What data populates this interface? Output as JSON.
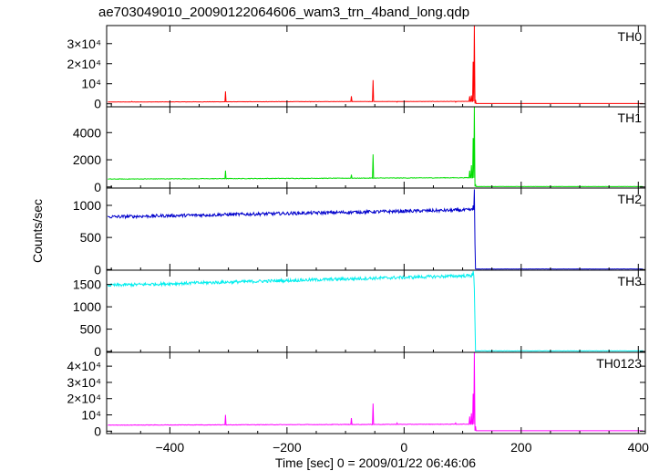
{
  "chart_data": {
    "type": "line",
    "title": "ae703049010_20090122064606_wam3_trn_4band_long.qdp",
    "xlabel": "Time [sec] 0 = 2009/01/22 06:46:06",
    "ylabel": "Counts/sec",
    "xlim": [
      -508,
      412
    ],
    "x_ticks": [
      -400,
      -200,
      0,
      200,
      400
    ],
    "x_tick_labels": [
      "−400",
      "−200",
      "0",
      "200",
      "400"
    ],
    "trigger_time": 120,
    "panels": [
      {
        "name": "TH0",
        "color": "#ff0000",
        "ylim": [
          -1500,
          39000
        ],
        "yticks": [
          0,
          10000,
          20000,
          30000
        ],
        "ytick_labels": [
          "0",
          "10⁴",
          "2×10⁴",
          "3×10⁴"
        ],
        "baseline_pre": 900,
        "baseline_trend": 300,
        "baseline_post": 150,
        "noise": 60,
        "spikes": [
          [
            -465,
            1200
          ],
          [
            -305,
            6200
          ],
          [
            -160,
            900
          ],
          [
            -90,
            3800
          ],
          [
            -60,
            1000
          ],
          [
            -53,
            11800
          ],
          [
            -12,
            800
          ],
          [
            88,
            800
          ],
          [
            112,
            3800
          ],
          [
            115,
            4200
          ],
          [
            118,
            21000
          ],
          [
            120,
            39000
          ],
          [
            122,
            2000
          ]
        ]
      },
      {
        "name": "TH1",
        "color": "#00dd00",
        "ylim": [
          -80,
          5900
        ],
        "yticks": [
          0,
          2000,
          4000
        ],
        "ytick_labels": [
          "0",
          "2000",
          "4000"
        ],
        "baseline_pre": 580,
        "baseline_trend": 100,
        "baseline_post": 30,
        "noise": 20,
        "spikes": [
          [
            -305,
            1200
          ],
          [
            -90,
            900
          ],
          [
            -53,
            2400
          ],
          [
            112,
            1200
          ],
          [
            115,
            1600
          ],
          [
            118,
            3600
          ],
          [
            120,
            5900
          ],
          [
            122,
            200
          ]
        ]
      },
      {
        "name": "TH2",
        "color": "#0000cc",
        "ylim": [
          -10,
          1270
        ],
        "yticks": [
          0,
          500,
          1000
        ],
        "ytick_labels": [
          "0",
          "500",
          "1000"
        ],
        "baseline_pre": 820,
        "baseline_trend": 110,
        "baseline_post": 8,
        "noise": 25,
        "spikes": [
          [
            118,
            1000
          ],
          [
            120,
            1250
          ],
          [
            121,
            400
          ]
        ]
      },
      {
        "name": "TH3",
        "color": "#00eeee",
        "ylim": [
          -20,
          1820
        ],
        "yticks": [
          0,
          500,
          1000,
          1500
        ],
        "ytick_labels": [
          "0",
          "500",
          "1000",
          "1500"
        ],
        "baseline_pre": 1480,
        "baseline_trend": 220,
        "baseline_post": 12,
        "noise": 35,
        "spikes": [
          [
            116,
            1750
          ],
          [
            118,
            1800
          ],
          [
            120,
            1400
          ],
          [
            121,
            650
          ]
        ]
      },
      {
        "name": "TH0123",
        "color": "#ff00ff",
        "ylim": [
          -1500,
          48500
        ],
        "yticks": [
          0,
          10000,
          20000,
          30000,
          40000
        ],
        "ytick_labels": [
          "0",
          "10⁴",
          "2×10⁴",
          "3×10⁴",
          "4×10⁴"
        ],
        "baseline_pre": 3700,
        "baseline_trend": 600,
        "baseline_post": 250,
        "noise": 150,
        "spikes": [
          [
            -305,
            10000
          ],
          [
            -90,
            8000
          ],
          [
            -53,
            17000
          ],
          [
            -12,
            5000
          ],
          [
            88,
            5000
          ],
          [
            112,
            9000
          ],
          [
            115,
            11000
          ],
          [
            118,
            23000
          ],
          [
            120,
            48500
          ],
          [
            122,
            3000
          ]
        ]
      }
    ]
  }
}
